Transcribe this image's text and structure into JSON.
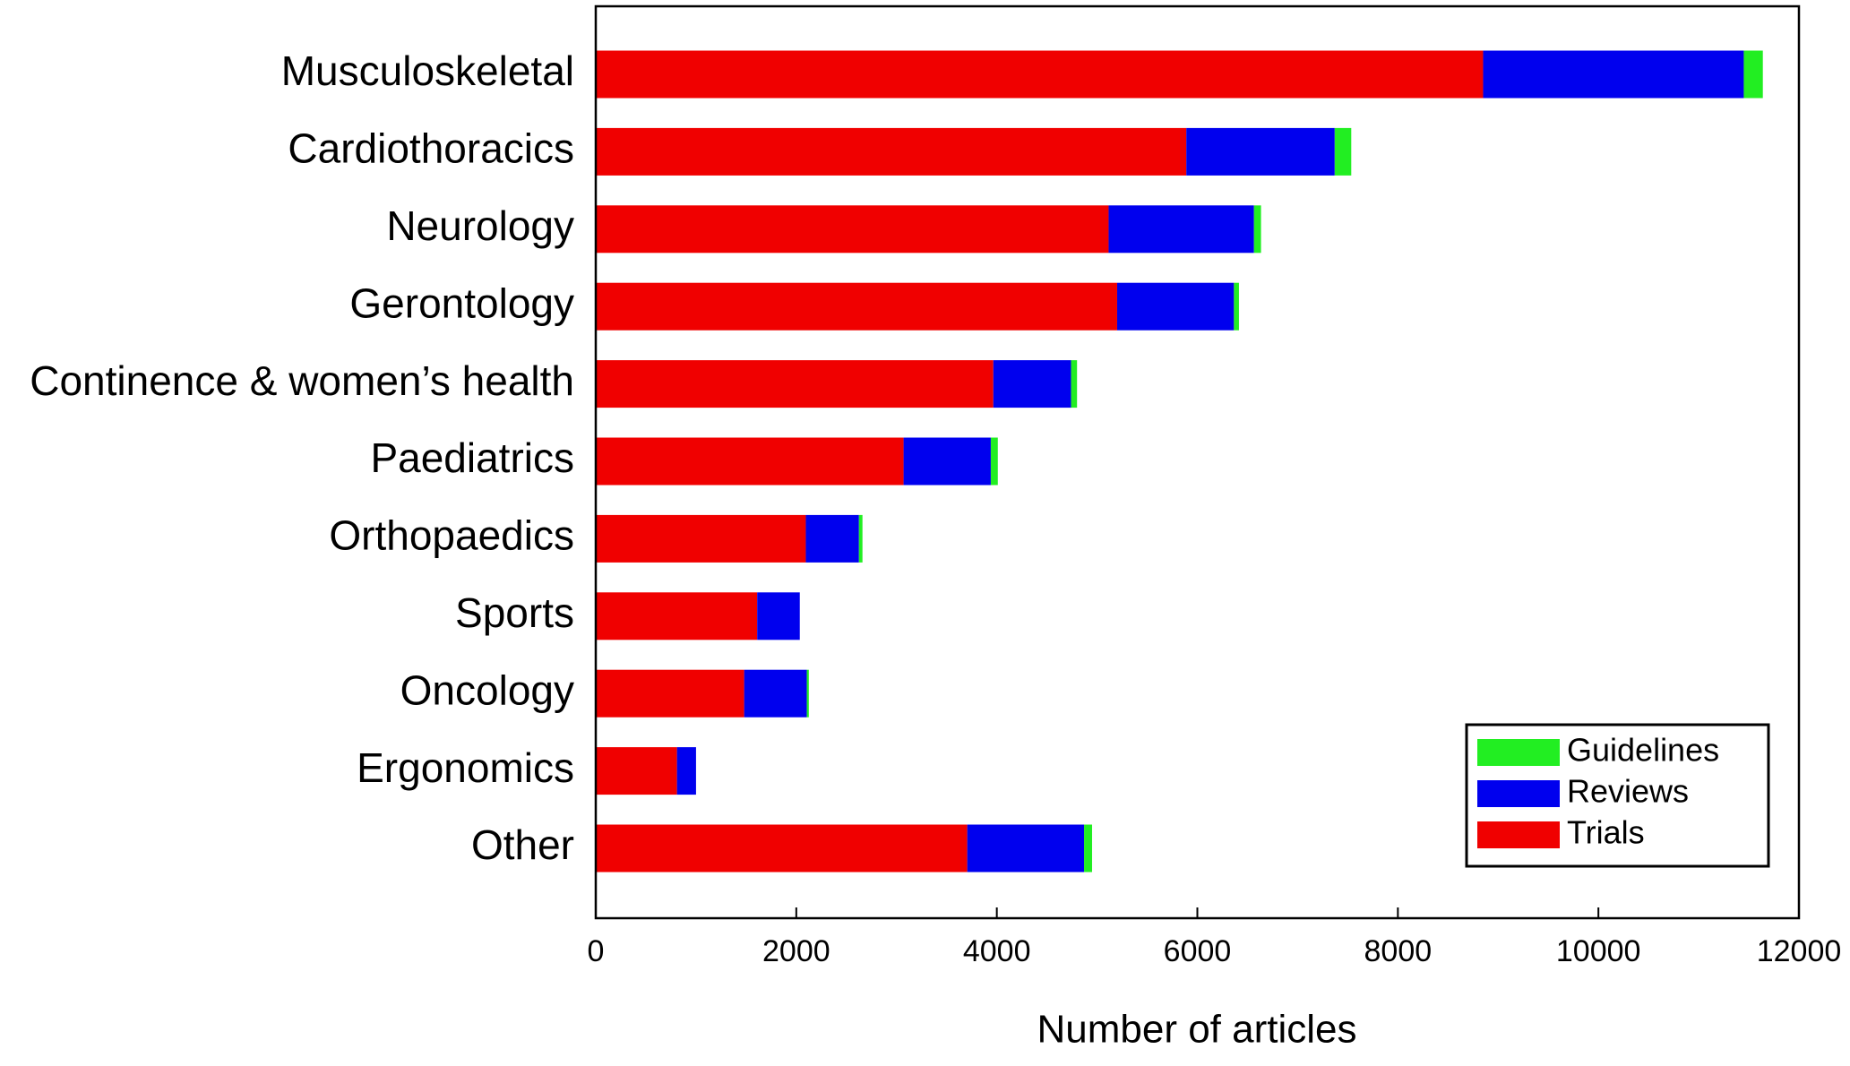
{
  "chart_data": {
    "type": "stacked_barh",
    "xlabel": "Number of articles",
    "categories": [
      "Musculoskeletal",
      "Cardiothoracics",
      "Neurology",
      "Gerontology",
      "Continence & women’s health",
      "Paediatrics",
      "Orthopaedics",
      "Sports",
      "Oncology",
      "Ergonomics",
      "Other"
    ],
    "series": [
      {
        "name": "Trials",
        "color": "#f00000",
        "values": [
          8850,
          5890,
          5115,
          5200,
          3965,
          3070,
          2095,
          1610,
          1480,
          810,
          3705
        ]
      },
      {
        "name": "Reviews",
        "color": "#0000ee",
        "values": [
          2600,
          1480,
          1450,
          1165,
          775,
          870,
          530,
          425,
          625,
          190,
          1165
        ]
      },
      {
        "name": "Guidelines",
        "color": "#22ee22",
        "values": [
          190,
          165,
          70,
          50,
          60,
          70,
          35,
          0,
          20,
          0,
          80
        ]
      }
    ],
    "xlim": [
      0,
      12000
    ],
    "xticks": [
      0,
      2000,
      4000,
      6000,
      8000,
      10000,
      12000
    ],
    "legend": "lower right"
  }
}
